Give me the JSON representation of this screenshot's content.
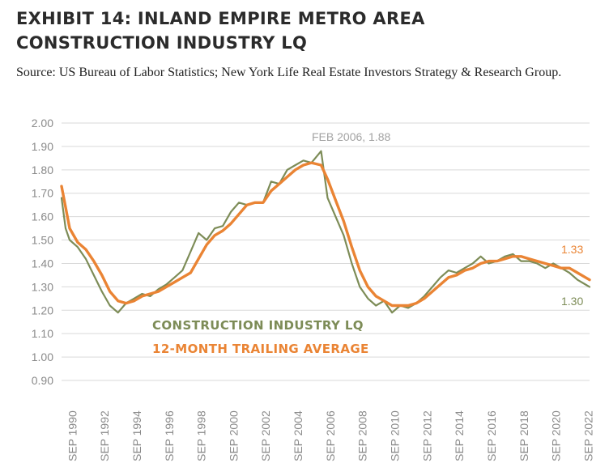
{
  "header": {
    "title_line1": "EXHIBIT 14: INLAND EMPIRE METRO AREA",
    "title_line2": "CONSTRUCTION INDUSTRY LQ",
    "source": "Source: US Bureau of Labor Statistics; New York Life Real Estate Investors Strategy & Research Group."
  },
  "chart_data": {
    "type": "line",
    "title": "EXHIBIT 14: INLAND EMPIRE METRO AREA CONSTRUCTION INDUSTRY LQ",
    "xlabel": "",
    "ylabel": "",
    "ylim": [
      0.9,
      2.0
    ],
    "yticks": [
      "0.90",
      "1.00",
      "1.10",
      "1.20",
      "1.30",
      "1.40",
      "1.50",
      "1.60",
      "1.70",
      "1.80",
      "1.90",
      "2.00"
    ],
    "xticks": [
      "SEP 1990",
      "SEP 1992",
      "SEP 1994",
      "SEP 1996",
      "SEP 1998",
      "SEP 2000",
      "SEP 2002",
      "SEP 2004",
      "SEP 2006",
      "SEP 2008",
      "SEP 2010",
      "SEP 2012",
      "SEP 2014",
      "SEP 2016",
      "SEP 2018",
      "SEP 2020",
      "SEP 2022"
    ],
    "grid": true,
    "legend": "center-bottom, text labels",
    "series": [
      {
        "name": "CONSTRUCTION INDUSTRY LQ",
        "color": "#7d8c57",
        "x": [
          1990.0,
          1990.25,
          1990.5,
          1991.0,
          1991.5,
          1992.0,
          1992.5,
          1993.0,
          1993.5,
          1994.0,
          1994.5,
          1995.0,
          1995.5,
          1996.0,
          1996.5,
          1997.0,
          1997.5,
          1998.0,
          1998.5,
          1999.0,
          1999.5,
          2000.0,
          2000.5,
          2001.0,
          2001.5,
          2002.0,
          2002.5,
          2003.0,
          2003.5,
          2004.0,
          2004.5,
          2005.0,
          2005.5,
          2006.1,
          2006.5,
          2007.0,
          2007.5,
          2008.0,
          2008.5,
          2009.0,
          2009.5,
          2010.0,
          2010.5,
          2011.0,
          2011.5,
          2012.0,
          2012.5,
          2013.0,
          2013.5,
          2014.0,
          2014.5,
          2015.0,
          2015.5,
          2016.0,
          2016.5,
          2017.0,
          2017.5,
          2018.0,
          2018.5,
          2019.0,
          2019.5,
          2020.0,
          2020.5,
          2021.0,
          2021.5,
          2022.0,
          2022.5,
          2022.75
        ],
        "values": [
          1.68,
          1.55,
          1.5,
          1.47,
          1.42,
          1.35,
          1.28,
          1.22,
          1.19,
          1.23,
          1.25,
          1.27,
          1.26,
          1.29,
          1.31,
          1.34,
          1.37,
          1.45,
          1.53,
          1.5,
          1.55,
          1.56,
          1.62,
          1.66,
          1.65,
          1.66,
          1.66,
          1.75,
          1.74,
          1.8,
          1.82,
          1.84,
          1.83,
          1.88,
          1.68,
          1.6,
          1.52,
          1.4,
          1.3,
          1.25,
          1.22,
          1.24,
          1.19,
          1.22,
          1.21,
          1.23,
          1.26,
          1.3,
          1.34,
          1.37,
          1.36,
          1.38,
          1.4,
          1.43,
          1.4,
          1.41,
          1.43,
          1.44,
          1.41,
          1.41,
          1.4,
          1.38,
          1.4,
          1.38,
          1.36,
          1.33,
          1.31,
          1.3
        ]
      },
      {
        "name": "12-MONTH TRAILING AVERAGE",
        "color": "#ea8434",
        "x": [
          1990.0,
          1990.25,
          1990.5,
          1991.0,
          1991.5,
          1992.0,
          1992.5,
          1993.0,
          1993.5,
          1994.0,
          1994.5,
          1995.0,
          1995.5,
          1996.0,
          1996.5,
          1997.0,
          1997.5,
          1998.0,
          1998.5,
          1999.0,
          1999.5,
          2000.0,
          2000.5,
          2001.0,
          2001.5,
          2002.0,
          2002.5,
          2003.0,
          2003.5,
          2004.0,
          2004.5,
          2005.0,
          2005.5,
          2006.1,
          2006.5,
          2007.0,
          2007.5,
          2008.0,
          2008.5,
          2009.0,
          2009.5,
          2010.0,
          2010.5,
          2011.0,
          2011.5,
          2012.0,
          2012.5,
          2013.0,
          2013.5,
          2014.0,
          2014.5,
          2015.0,
          2015.5,
          2016.0,
          2016.5,
          2017.0,
          2017.5,
          2018.0,
          2018.5,
          2019.0,
          2019.5,
          2020.0,
          2020.5,
          2021.0,
          2021.5,
          2022.0,
          2022.5,
          2022.75
        ],
        "values": [
          1.73,
          1.64,
          1.55,
          1.49,
          1.46,
          1.41,
          1.35,
          1.28,
          1.24,
          1.23,
          1.24,
          1.26,
          1.27,
          1.28,
          1.3,
          1.32,
          1.34,
          1.36,
          1.42,
          1.48,
          1.52,
          1.54,
          1.57,
          1.61,
          1.65,
          1.66,
          1.66,
          1.71,
          1.74,
          1.77,
          1.8,
          1.82,
          1.83,
          1.82,
          1.76,
          1.67,
          1.58,
          1.47,
          1.37,
          1.3,
          1.26,
          1.24,
          1.22,
          1.22,
          1.22,
          1.23,
          1.25,
          1.28,
          1.31,
          1.34,
          1.35,
          1.37,
          1.38,
          1.4,
          1.41,
          1.41,
          1.42,
          1.43,
          1.43,
          1.42,
          1.41,
          1.4,
          1.39,
          1.38,
          1.38,
          1.36,
          1.34,
          1.33
        ]
      }
    ]
  },
  "annotations": {
    "peak": "FEB 2006, 1.88",
    "end_avg": "1.33",
    "end_lq": "1.30"
  },
  "legend_labels": {
    "lq": "CONSTRUCTION INDUSTRY LQ",
    "avg": "12-MONTH TRAILING AVERAGE"
  },
  "colors": {
    "lq": "#7d8c57",
    "avg": "#ea8434",
    "annotation_gray": "#a3a3a3"
  }
}
